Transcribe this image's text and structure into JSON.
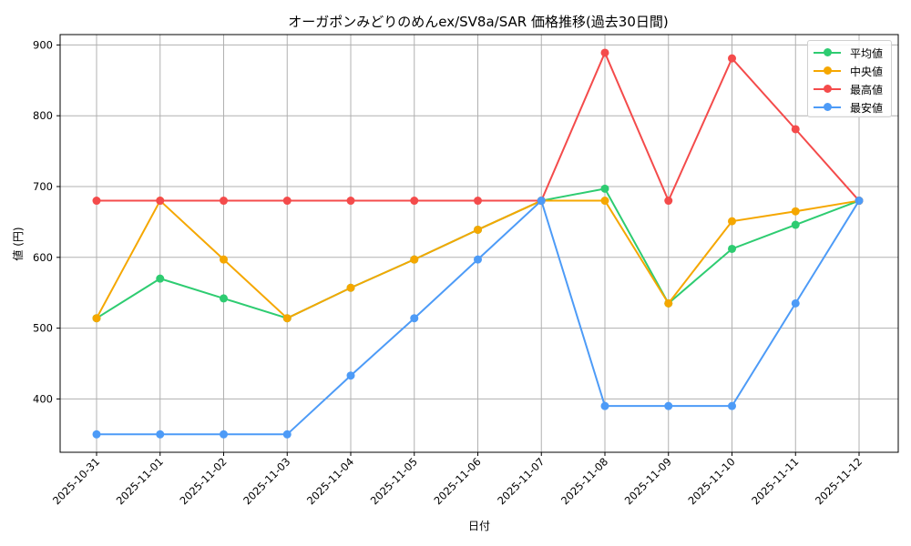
{
  "chart_data": {
    "type": "line",
    "title": "オーガポンみどりのめんex/SV8a/SAR 価格推移(過去30日間)",
    "xlabel": "日付",
    "ylabel": "値 (円)",
    "categories": [
      "2025-10-31",
      "2025-11-01",
      "2025-11-02",
      "2025-11-03",
      "2025-11-04",
      "2025-11-05",
      "2025-11-06",
      "2025-11-07",
      "2025-11-08",
      "2025-11-09",
      "2025-11-10",
      "2025-11-11",
      "2025-11-12"
    ],
    "yticks": [
      400,
      500,
      600,
      700,
      800,
      900
    ],
    "ylim": [
      322,
      917
    ],
    "grid": true,
    "legend_position": "upper right",
    "series": [
      {
        "name": "平均値",
        "color": "#2ecc71",
        "values": [
          514,
          570,
          542,
          514,
          557,
          597,
          639,
          680,
          697,
          535,
          612,
          646,
          680
        ]
      },
      {
        "name": "中央値",
        "color": "#f5a700",
        "values": [
          514,
          680,
          597,
          514,
          557,
          597,
          639,
          680,
          680,
          535,
          651,
          665,
          680
        ]
      },
      {
        "name": "最高値",
        "color": "#f44b4b",
        "values": [
          680,
          680,
          680,
          680,
          680,
          680,
          680,
          680,
          889,
          680,
          881,
          781,
          680
        ]
      },
      {
        "name": "最安値",
        "color": "#4d9bf7",
        "values": [
          350,
          350,
          350,
          350,
          433,
          514,
          597,
          680,
          390,
          390,
          390,
          535,
          680
        ]
      }
    ]
  }
}
